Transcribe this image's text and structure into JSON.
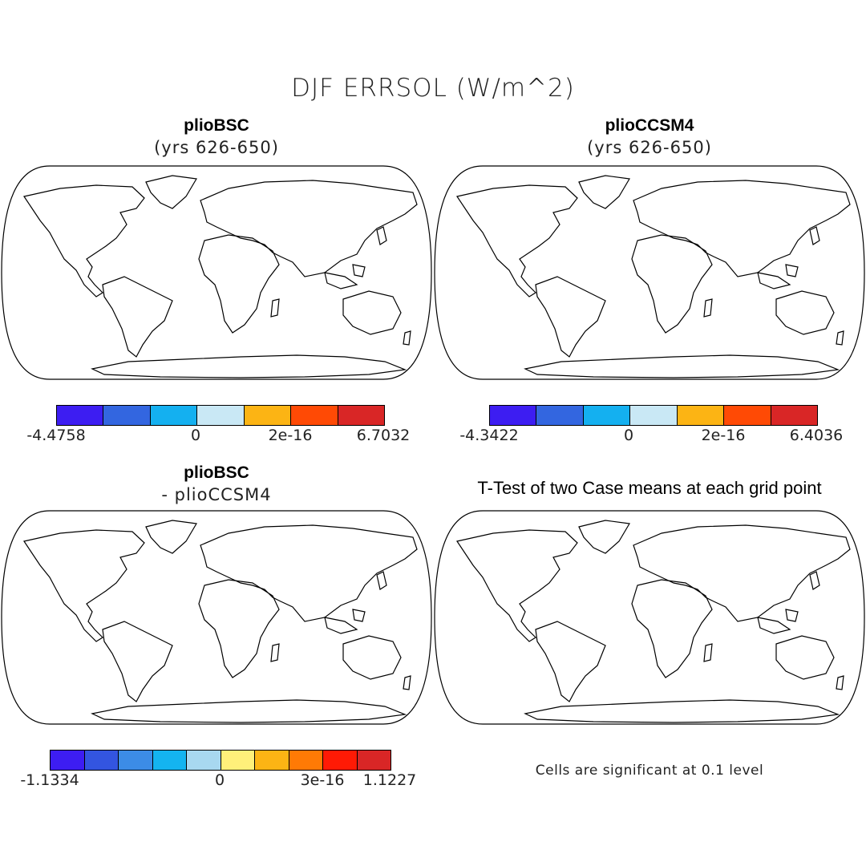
{
  "title": "DJF ERRSOL (W/m^2)",
  "panels": [
    {
      "title": "plioBSC",
      "subtitle": "(yrs 626-650)",
      "colorbar": {
        "colors": [
          "#3d1df2",
          "#3366e0",
          "#14b0f0",
          "#c9e8f5",
          "#fcb414",
          "#ff4a05",
          "#d92626"
        ],
        "tick_labels": [
          "-4.4758",
          "0",
          "2e-16",
          "6.7032"
        ]
      },
      "palette": [
        "#3d1df2",
        "#3366e0",
        "#14b0f0",
        "#c9e8f5",
        "#fcb414",
        "#ff4a05",
        "#d92626"
      ]
    },
    {
      "title": "plioCCSM4",
      "subtitle": "(yrs 626-650)",
      "colorbar": {
        "colors": [
          "#3d1df2",
          "#3366e0",
          "#14b0f0",
          "#c9e8f5",
          "#fcb414",
          "#ff4a05",
          "#d92626"
        ],
        "tick_labels": [
          "-4.3422",
          "0",
          "2e-16",
          "6.4036"
        ]
      },
      "palette": [
        "#3d1df2",
        "#3366e0",
        "#14b0f0",
        "#c9e8f5",
        "#fcb414",
        "#ff4a05",
        "#d92626"
      ]
    },
    {
      "title": "plioBSC",
      "subtitle": "- plioCCSM4",
      "colorbar": {
        "colors": [
          "#3d1df2",
          "#3355e0",
          "#3c8ce6",
          "#14b4f0",
          "#a8d8f0",
          "#fff07a",
          "#fcb414",
          "#ff7a05",
          "#ff1a05",
          "#d92626"
        ],
        "tick_labels": [
          "-1.1334",
          "0",
          "3e-16",
          "1.1227"
        ]
      },
      "palette": [
        "#3d1df2",
        "#3355e0",
        "#3c8ce6",
        "#14b4f0",
        "#a8d8f0",
        "#fff07a",
        "#fcb414",
        "#ff7a05",
        "#ff1a05",
        "#d92626"
      ]
    },
    {
      "title": "T-Test of two Case means at each grid point",
      "note": "Cells are significant at 0.1 level",
      "dot_color": "#ff2020"
    }
  ]
}
